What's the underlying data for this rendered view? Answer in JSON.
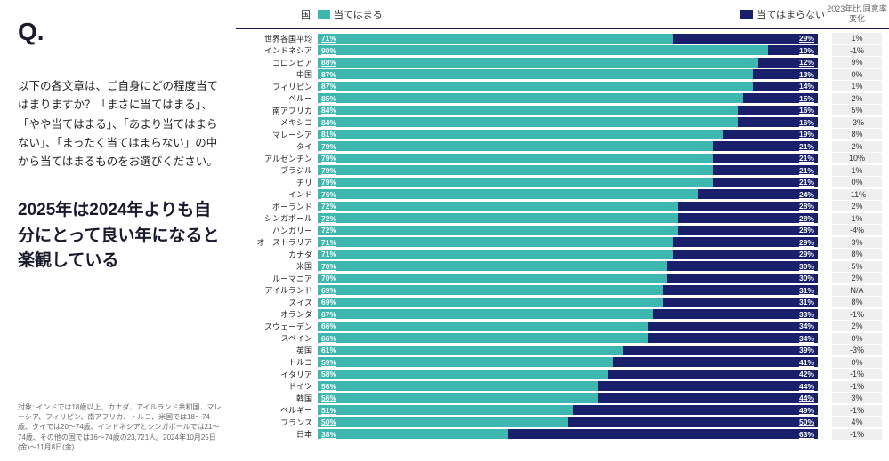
{
  "q_mark": "Q.",
  "question_text": "以下の各文章は、ご自身にどの程度当てはまりますか？「まさに当てはまる」、「やや当てはまる」、「あまり当てはまらない」、「まったく当てはまらない」の中から当てはまるものをお選びください。",
  "statement": "2025年は2024年よりも自分にとって良い年になると楽観している",
  "footnote": "対象: インドでは18歳以上、カナダ、アイルランド共和国、マレーシア、フィリピン、南アフリカ、トルコ、米国では18〜74歳、タイでは20〜74歳、インドネシアとシンガポールでは21〜74歳、その他の国では16〜74歳の23,721人。2024年10月25日(金)〜11月8日(金)",
  "legend": {
    "country_header": "国",
    "agree_label": "当てはまる",
    "disagree_label": "当てはまらない",
    "change_header": "2023年比\n同意率変化"
  },
  "colors": {
    "agree": "#3eb7b0",
    "disagree": "#1a1f6b",
    "change_bg": "#efefef",
    "header_rule": "#1a1f6b"
  },
  "rows": [
    {
      "country": "世界各国平均",
      "agree": 71,
      "disagree": 29,
      "change": "1%"
    },
    {
      "country": "インドネシア",
      "agree": 90,
      "disagree": 10,
      "change": "-1%"
    },
    {
      "country": "コロンビア",
      "agree": 88,
      "disagree": 12,
      "change": "9%"
    },
    {
      "country": "中国",
      "agree": 87,
      "disagree": 13,
      "change": "0%"
    },
    {
      "country": "フィリピン",
      "agree": 87,
      "disagree": 14,
      "change": "1%"
    },
    {
      "country": "ペルー",
      "agree": 85,
      "disagree": 15,
      "change": "2%"
    },
    {
      "country": "南アフリカ",
      "agree": 84,
      "disagree": 16,
      "change": "5%"
    },
    {
      "country": "メキシコ",
      "agree": 84,
      "disagree": 16,
      "change": "-3%"
    },
    {
      "country": "マレーシア",
      "agree": 81,
      "disagree": 19,
      "change": "8%"
    },
    {
      "country": "タイ",
      "agree": 79,
      "disagree": 21,
      "change": "2%"
    },
    {
      "country": "アルゼンチン",
      "agree": 79,
      "disagree": 21,
      "change": "10%"
    },
    {
      "country": "ブラジル",
      "agree": 79,
      "disagree": 21,
      "change": "1%"
    },
    {
      "country": "チリ",
      "agree": 79,
      "disagree": 21,
      "change": "0%"
    },
    {
      "country": "インド",
      "agree": 76,
      "disagree": 24,
      "change": "-11%"
    },
    {
      "country": "ポーランド",
      "agree": 72,
      "disagree": 28,
      "change": "2%"
    },
    {
      "country": "シンガポール",
      "agree": 72,
      "disagree": 28,
      "change": "1%"
    },
    {
      "country": "ハンガリー",
      "agree": 72,
      "disagree": 28,
      "change": "-4%"
    },
    {
      "country": "オーストラリア",
      "agree": 71,
      "disagree": 29,
      "change": "3%"
    },
    {
      "country": "カナダ",
      "agree": 71,
      "disagree": 29,
      "change": "8%"
    },
    {
      "country": "米国",
      "agree": 70,
      "disagree": 30,
      "change": "5%"
    },
    {
      "country": "ルーマニア",
      "agree": 70,
      "disagree": 30,
      "change": "2%"
    },
    {
      "country": "アイルランド",
      "agree": 69,
      "disagree": 31,
      "change": "N/A"
    },
    {
      "country": "スイス",
      "agree": 69,
      "disagree": 31,
      "change": "8%"
    },
    {
      "country": "オランダ",
      "agree": 67,
      "disagree": 33,
      "change": "-1%"
    },
    {
      "country": "スウェーデン",
      "agree": 66,
      "disagree": 34,
      "change": "2%"
    },
    {
      "country": "スペイン",
      "agree": 66,
      "disagree": 34,
      "change": "0%"
    },
    {
      "country": "英国",
      "agree": 61,
      "disagree": 39,
      "change": "-3%"
    },
    {
      "country": "トルコ",
      "agree": 59,
      "disagree": 41,
      "change": "0%"
    },
    {
      "country": "イタリア",
      "agree": 58,
      "disagree": 42,
      "change": "-1%"
    },
    {
      "country": "ドイツ",
      "agree": 56,
      "disagree": 44,
      "change": "-1%"
    },
    {
      "country": "韓国",
      "agree": 56,
      "disagree": 44,
      "change": "3%"
    },
    {
      "country": "ベルギー",
      "agree": 51,
      "disagree": 49,
      "change": "-1%"
    },
    {
      "country": "フランス",
      "agree": 50,
      "disagree": 50,
      "change": "4%"
    },
    {
      "country": "日本",
      "agree": 38,
      "disagree": 63,
      "change": "-1%"
    }
  ]
}
